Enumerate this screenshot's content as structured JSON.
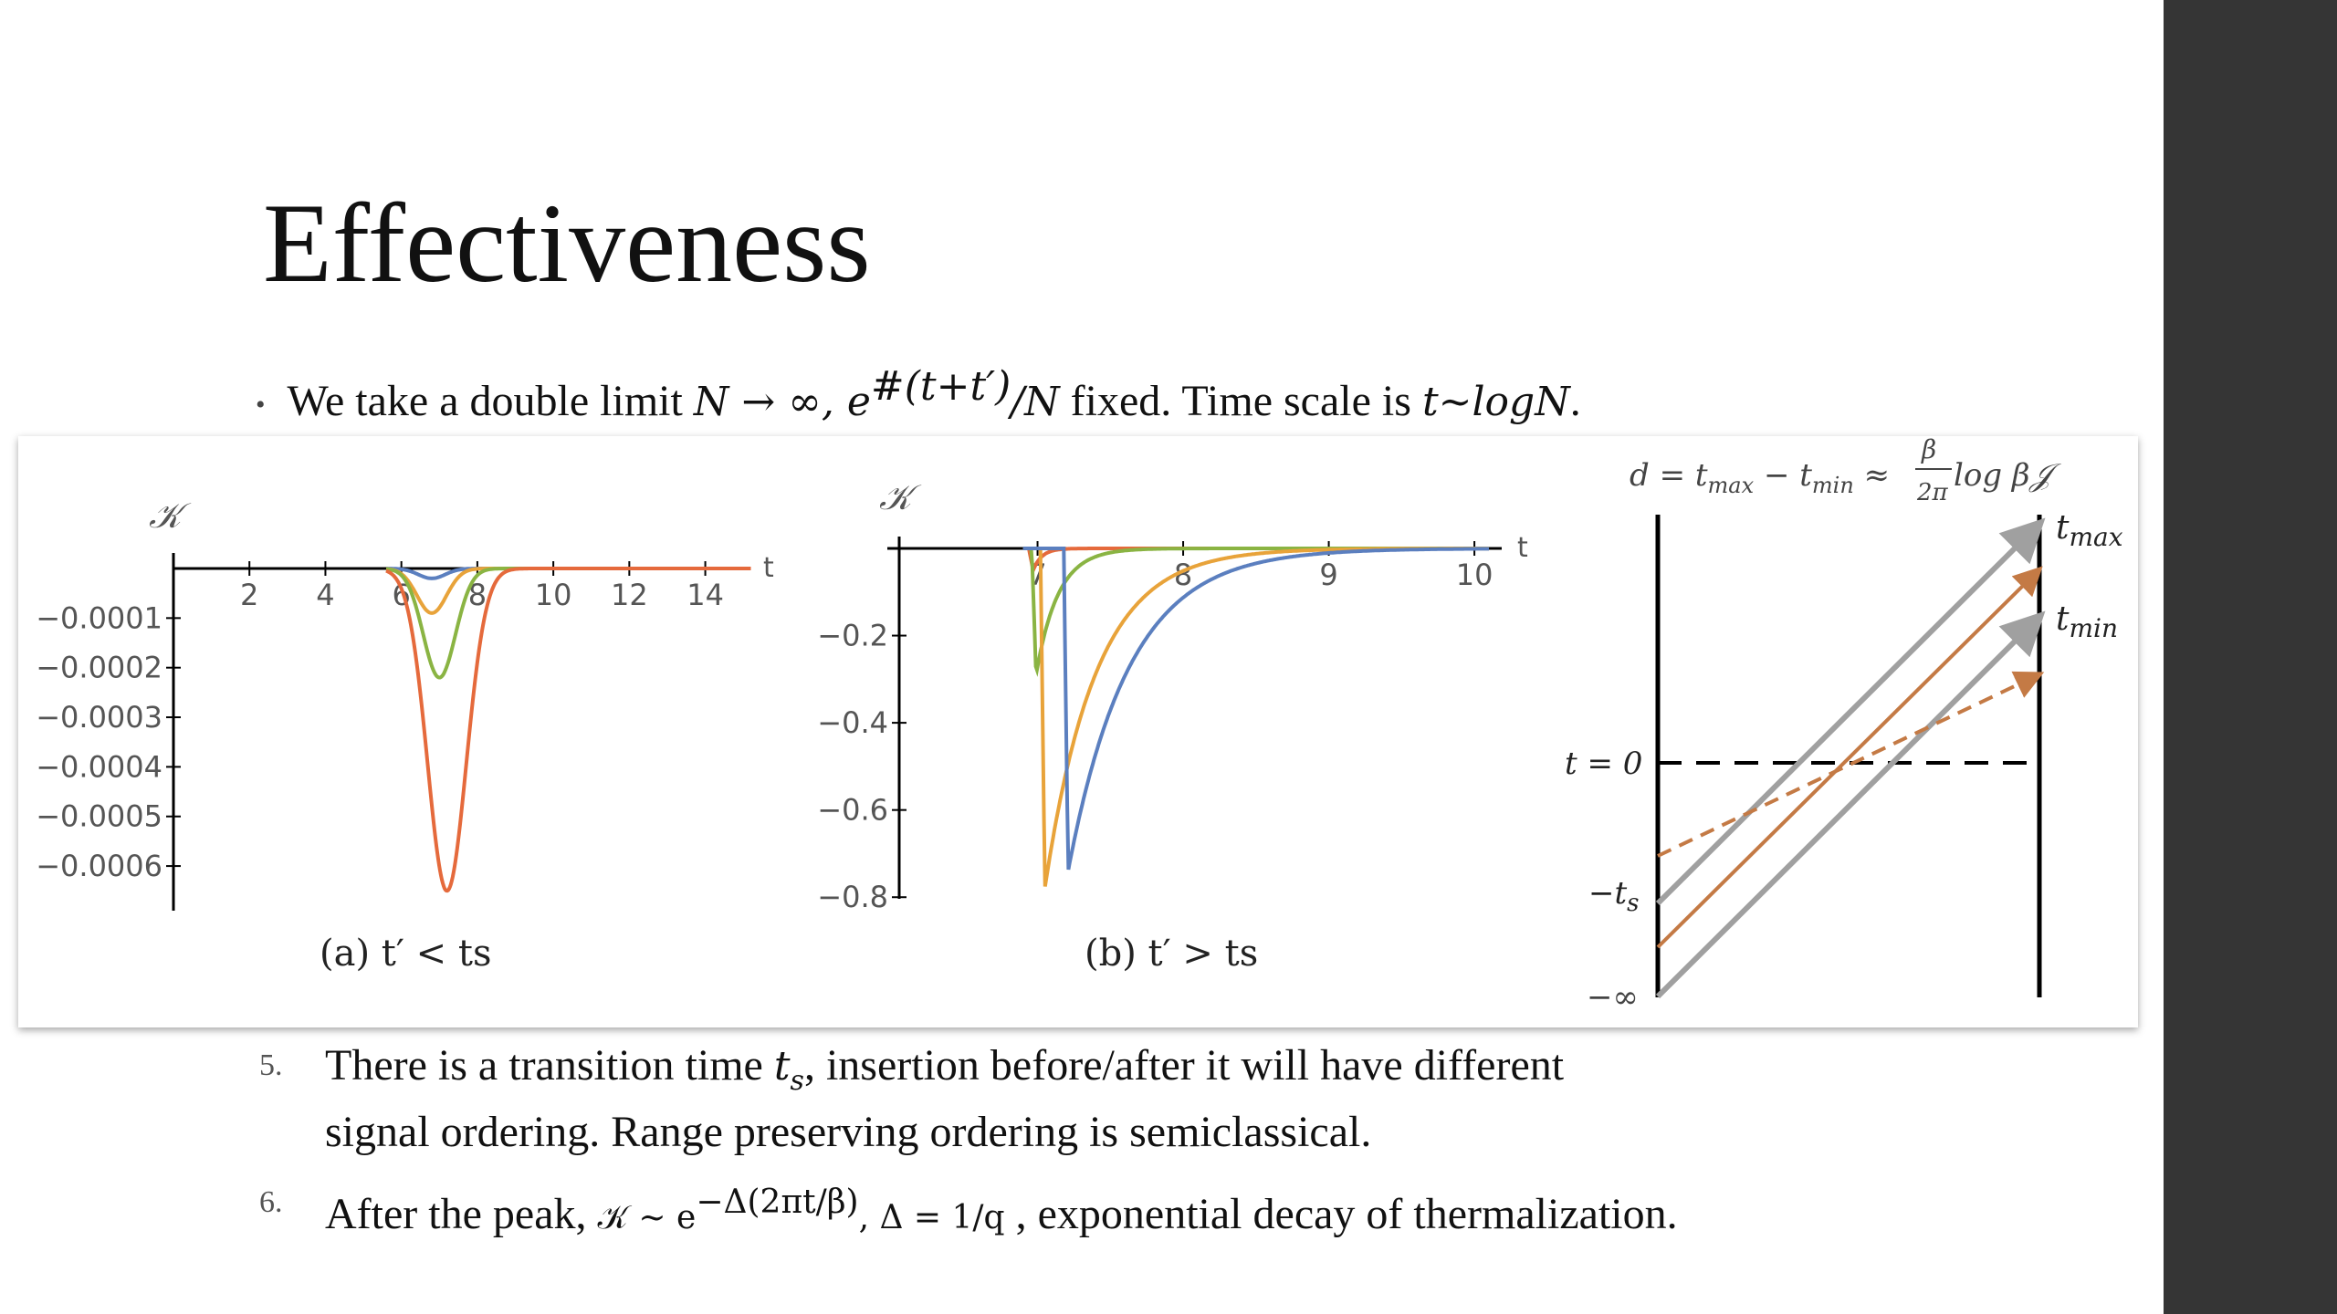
{
  "slide": {
    "title": "Effectiveness",
    "bullet": {
      "prefix": "We take a double limit ",
      "math1": "N → ∞, e",
      "sup": "#(t+t′)",
      "math2": "/N",
      "middle": " fixed. Time scale is ",
      "math3": "t~logN",
      "suffix": "."
    },
    "items": [
      {
        "number": "5.",
        "line1_pre": "There is a transition time ",
        "line1_math": "t",
        "line1_sub": "s",
        "line1_post": ", insertion before/after it will have different",
        "line2": "signal ordering. Range preserving ordering is semiclassical."
      },
      {
        "number": "6.",
        "pre": "After the peak, ",
        "math1": "𝒦 ~ e",
        "sup": "−Δ(2πt/β)",
        "math2": ",   Δ = 1/q",
        "post": " , exponential decay of thermalization."
      }
    ]
  },
  "colors": {
    "sidebar": "#353535",
    "blue": "#5b7fbf",
    "orange": "#e8a33a",
    "green": "#8ab443",
    "red": "#e56a3c",
    "gray_arrow": "#a0a0a0",
    "brown_arrow": "#c47a45"
  },
  "chart_data": [
    {
      "type": "line",
      "caption": "(a) t′ < ts",
      "ylabel": "𝒦",
      "xlabel": "t",
      "xlim": [
        0,
        15.5
      ],
      "ylim": [
        -0.00069,
        0
      ],
      "x_ticks": [
        2,
        4,
        6,
        8,
        10,
        12,
        14
      ],
      "y_ticks": [
        -0.0001,
        -0.0002,
        -0.0003,
        -0.0004,
        -0.0005,
        -0.0006
      ],
      "y_tick_labels": [
        "−0.0001",
        "−0.0002",
        "−0.0003",
        "−0.0004",
        "−0.0005",
        "−0.0006"
      ],
      "series": [
        {
          "color": "#5b7fbf",
          "center": 6.8,
          "width": 0.5,
          "min": -2e-05
        },
        {
          "color": "#e8a33a",
          "center": 6.8,
          "width": 0.55,
          "min": -9e-05
        },
        {
          "color": "#8ab443",
          "center": 7.0,
          "width": 0.6,
          "min": -0.00022
        },
        {
          "color": "#e56a3c",
          "center": 7.2,
          "width": 0.72,
          "min": -0.00065
        }
      ]
    },
    {
      "type": "line",
      "caption": "(b) t′ > ts",
      "ylabel": "𝒦",
      "xlabel": "t",
      "xlim": [
        6.05,
        10.2
      ],
      "ylim": [
        -0.81,
        0
      ],
      "x_ticks": [
        7,
        8,
        9,
        10
      ],
      "y_ticks": [
        -0.2,
        -0.4,
        -0.6,
        -0.8
      ],
      "y_tick_labels": [
        "−0.2",
        "−0.4",
        "−0.6",
        "−0.8"
      ],
      "series": [
        {
          "color": "#e56a3c",
          "t0": 6.97,
          "tau": 0.06,
          "min": -0.05
        },
        {
          "color": "#8ab443",
          "t0": 6.99,
          "tau": 0.15,
          "min": -0.29
        },
        {
          "color": "#e8a33a",
          "t0": 7.05,
          "tau": 0.35,
          "min": -0.78
        },
        {
          "color": "#5b7fbf",
          "t0": 7.21,
          "tau": 0.42,
          "min": -0.74
        }
      ]
    }
  ],
  "diagram": {
    "formula": "d = tmax − tmin ≈ (β/2π) log β𝒥",
    "formula_lhs": "d = t",
    "formula_max": "max",
    "formula_mid": " − t",
    "formula_min": "min",
    "formula_approx": " ≈ ",
    "formula_num": "β",
    "formula_den": "2π",
    "formula_tail": " log β𝒥",
    "label_tmax": "t",
    "label_tmax_sub": "max",
    "label_tmin": "t",
    "label_tmin_sub": "min",
    "label_t0": "t = 0",
    "label_ts": "−t",
    "label_ts_sub": "s",
    "label_inf": "−∞"
  }
}
